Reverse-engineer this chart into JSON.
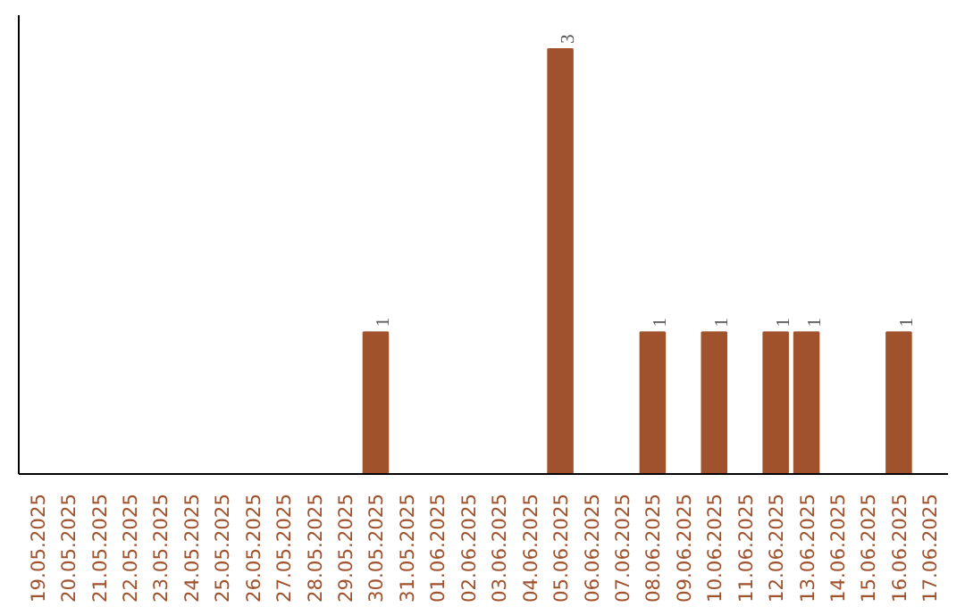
{
  "chart_data": {
    "type": "bar",
    "categories": [
      "19.05.2025",
      "20.05.2025",
      "21.05.2025",
      "22.05.2025",
      "23.05.2025",
      "24.05.2025",
      "25.05.2025",
      "26.05.2025",
      "27.05.2025",
      "28.05.2025",
      "29.05.2025",
      "30.05.2025",
      "31.05.2025",
      "01.06.2025",
      "02.06.2025",
      "03.06.2025",
      "04.06.2025",
      "05.06.2025",
      "06.06.2025",
      "07.06.2025",
      "08.06.2025",
      "09.06.2025",
      "10.06.2025",
      "11.06.2025",
      "12.06.2025",
      "13.06.2025",
      "14.06.2025",
      "15.06.2025",
      "16.06.2025",
      "17.06.2025"
    ],
    "values": [
      0,
      0,
      0,
      0,
      0,
      0,
      0,
      0,
      0,
      0,
      0,
      1,
      0,
      0,
      0,
      0,
      0,
      3,
      0,
      0,
      1,
      0,
      1,
      0,
      1,
      1,
      0,
      0,
      1,
      0
    ],
    "value_labels": [
      null,
      null,
      null,
      null,
      null,
      null,
      null,
      null,
      null,
      null,
      null,
      "1",
      null,
      null,
      null,
      null,
      null,
      "3",
      null,
      null,
      "1",
      null,
      "1",
      null,
      "1",
      "1",
      null,
      null,
      "1",
      null
    ],
    "color": "#a0522d",
    "grid": false
  }
}
